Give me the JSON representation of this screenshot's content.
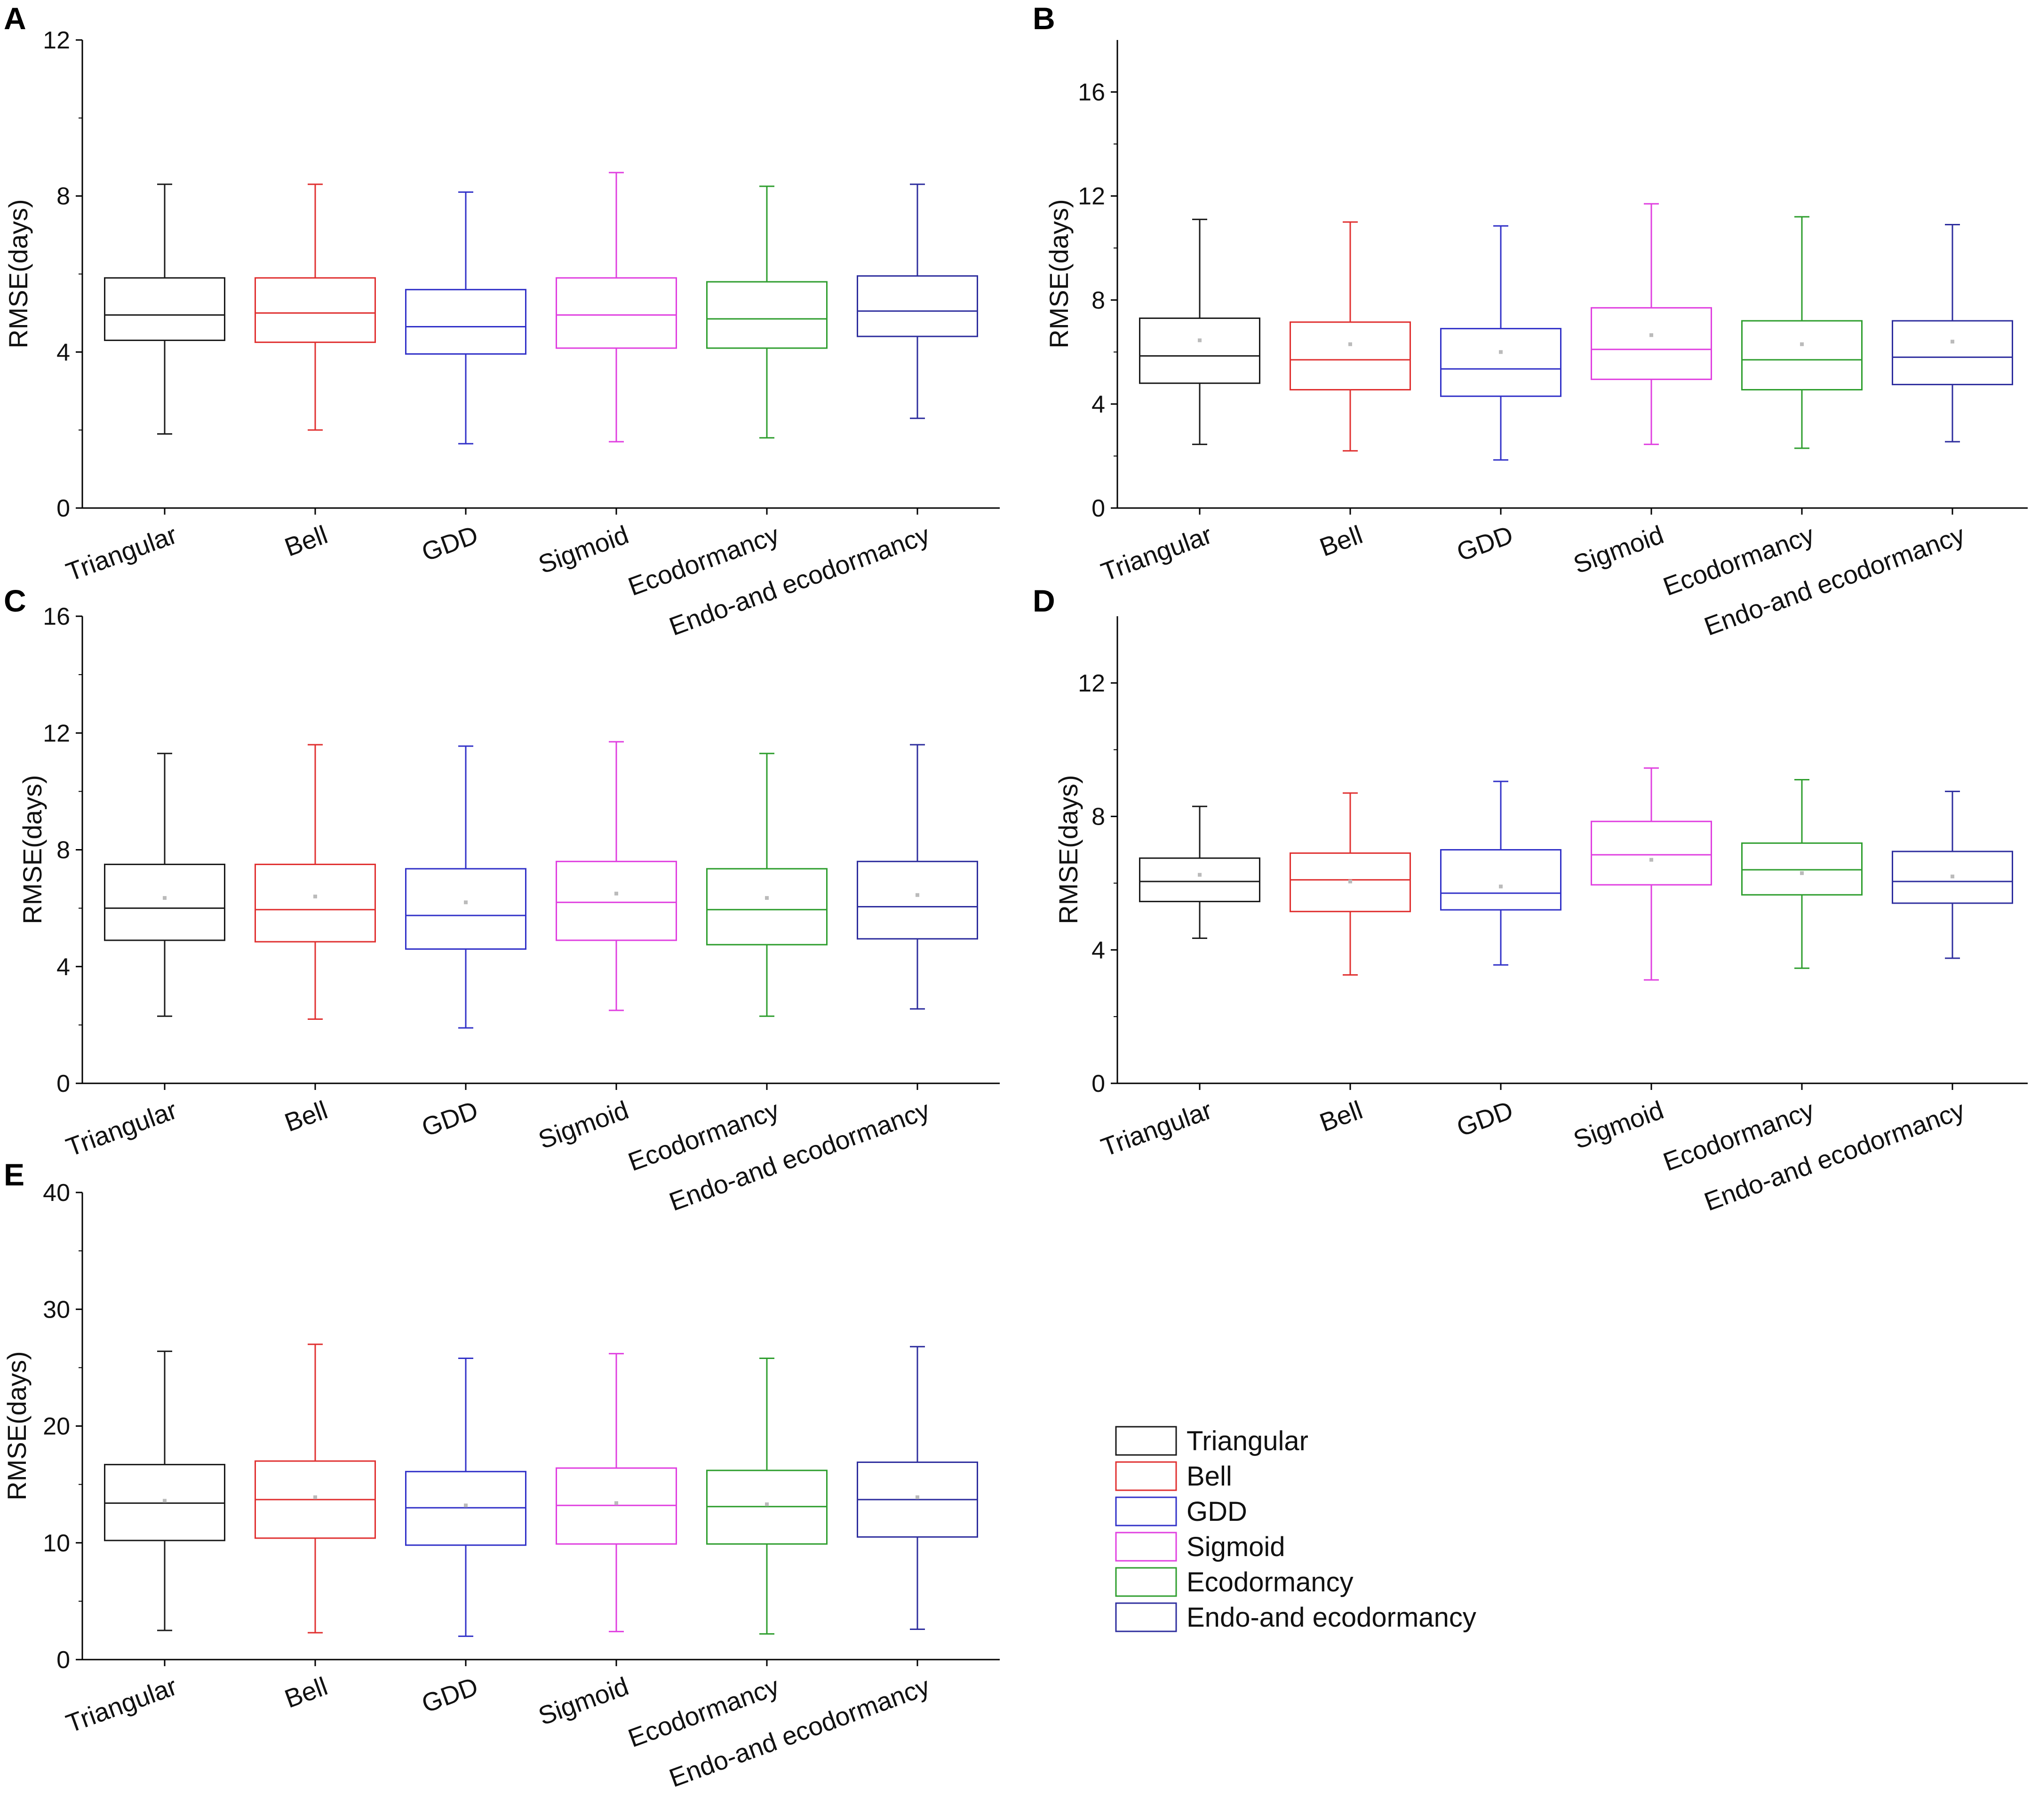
{
  "figure": {
    "categories": [
      "Triangular",
      "Bell",
      "GDD",
      "Sigmoid",
      "Ecodormancy",
      "Endo-and ecodormancy"
    ],
    "colors": {
      "Triangular": "#1a1a1a",
      "Bell": "#e03030",
      "GDD": "#3232c8",
      "Sigmoid": "#e040e0",
      "Ecodormancy": "#2e9e2e",
      "Endo-and ecodormancy": "#2e2e9e"
    },
    "legend": [
      "Triangular",
      "Bell",
      "GDD",
      "Sigmoid",
      "Ecodormancy",
      "Endo-and ecodormancy"
    ]
  },
  "chart_data": [
    {
      "type": "box",
      "panel": "A",
      "ylabel": "RMSE(days)",
      "ylim": [
        0,
        12
      ],
      "yticks": [
        0,
        4,
        8,
        12
      ],
      "categories": [
        "Triangular",
        "Bell",
        "GDD",
        "Sigmoid",
        "Ecodormancy",
        "Endo-and ecodormancy"
      ],
      "boxes": [
        {
          "min": 1.9,
          "q1": 4.3,
          "median": 4.95,
          "q3": 5.9,
          "max": 8.3
        },
        {
          "min": 2.0,
          "q1": 4.25,
          "median": 5.0,
          "q3": 5.9,
          "max": 8.3
        },
        {
          "min": 1.65,
          "q1": 3.95,
          "median": 4.65,
          "q3": 5.6,
          "max": 8.1
        },
        {
          "min": 1.7,
          "q1": 4.1,
          "median": 4.95,
          "q3": 5.9,
          "max": 8.6
        },
        {
          "min": 1.8,
          "q1": 4.1,
          "median": 4.85,
          "q3": 5.8,
          "max": 8.25
        },
        {
          "min": 2.3,
          "q1": 4.4,
          "median": 5.05,
          "q3": 5.95,
          "max": 8.3
        }
      ]
    },
    {
      "type": "box",
      "panel": "B",
      "ylabel": "RMSE(days)",
      "ylim": [
        0,
        18
      ],
      "yticks": [
        0,
        4,
        8,
        12,
        16
      ],
      "categories": [
        "Triangular",
        "Bell",
        "GDD",
        "Sigmoid",
        "Ecodormancy",
        "Endo-and ecodormancy"
      ],
      "boxes": [
        {
          "min": 2.45,
          "q1": 4.8,
          "median": 5.85,
          "q3": 7.3,
          "max": 11.1,
          "mean": 6.45
        },
        {
          "min": 2.2,
          "q1": 4.55,
          "median": 5.7,
          "q3": 7.15,
          "max": 11.0,
          "mean": 6.3
        },
        {
          "min": 1.85,
          "q1": 4.3,
          "median": 5.35,
          "q3": 6.9,
          "max": 10.85,
          "mean": 6.0
        },
        {
          "min": 2.45,
          "q1": 4.95,
          "median": 6.1,
          "q3": 7.7,
          "max": 11.7,
          "mean": 6.65
        },
        {
          "min": 2.3,
          "q1": 4.55,
          "median": 5.7,
          "q3": 7.2,
          "max": 11.2,
          "mean": 6.3
        },
        {
          "min": 2.55,
          "q1": 4.75,
          "median": 5.8,
          "q3": 7.2,
          "max": 10.9,
          "mean": 6.4
        }
      ]
    },
    {
      "type": "box",
      "panel": "C",
      "ylabel": "RMSE(days)",
      "ylim": [
        0,
        16
      ],
      "yticks": [
        0,
        4,
        8,
        12,
        16
      ],
      "categories": [
        "Triangular",
        "Bell",
        "GDD",
        "Sigmoid",
        "Ecodormancy",
        "Endo-and ecodormancy"
      ],
      "boxes": [
        {
          "min": 2.3,
          "q1": 4.9,
          "median": 6.0,
          "q3": 7.5,
          "max": 11.3,
          "mean": 6.35
        },
        {
          "min": 2.2,
          "q1": 4.85,
          "median": 5.95,
          "q3": 7.5,
          "max": 11.6,
          "mean": 6.4
        },
        {
          "min": 1.9,
          "q1": 4.6,
          "median": 5.75,
          "q3": 7.35,
          "max": 11.55,
          "mean": 6.2
        },
        {
          "min": 2.5,
          "q1": 4.9,
          "median": 6.2,
          "q3": 7.6,
          "max": 11.7,
          "mean": 6.5
        },
        {
          "min": 2.3,
          "q1": 4.75,
          "median": 5.95,
          "q3": 7.35,
          "max": 11.3,
          "mean": 6.35
        },
        {
          "min": 2.55,
          "q1": 4.95,
          "median": 6.05,
          "q3": 7.6,
          "max": 11.6,
          "mean": 6.45
        }
      ]
    },
    {
      "type": "box",
      "panel": "D",
      "ylabel": "RMSE(days)",
      "ylim": [
        0,
        14
      ],
      "yticks": [
        0,
        4,
        8,
        12
      ],
      "categories": [
        "Triangular",
        "Bell",
        "GDD",
        "Sigmoid",
        "Ecodormancy",
        "Endo-and ecodormancy"
      ],
      "boxes": [
        {
          "min": 4.35,
          "q1": 5.45,
          "median": 6.05,
          "q3": 6.75,
          "max": 8.3,
          "mean": 6.25
        },
        {
          "min": 3.25,
          "q1": 5.15,
          "median": 6.1,
          "q3": 6.9,
          "max": 8.7,
          "mean": 6.05
        },
        {
          "min": 3.55,
          "q1": 5.2,
          "median": 5.7,
          "q3": 7.0,
          "max": 9.05,
          "mean": 5.9
        },
        {
          "min": 3.1,
          "q1": 5.95,
          "median": 6.85,
          "q3": 7.85,
          "max": 9.45,
          "mean": 6.7
        },
        {
          "min": 3.45,
          "q1": 5.65,
          "median": 6.4,
          "q3": 7.2,
          "max": 9.1,
          "mean": 6.3
        },
        {
          "min": 3.75,
          "q1": 5.4,
          "median": 6.05,
          "q3": 6.95,
          "max": 8.75,
          "mean": 6.2
        }
      ]
    },
    {
      "type": "box",
      "panel": "E",
      "ylabel": "RMSE(days)",
      "ylim": [
        0,
        40
      ],
      "yticks": [
        0,
        10,
        20,
        30,
        40
      ],
      "categories": [
        "Triangular",
        "Bell",
        "GDD",
        "Sigmoid",
        "Ecodormancy",
        "Endo-and ecodormancy"
      ],
      "boxes": [
        {
          "min": 2.5,
          "q1": 10.2,
          "median": 13.4,
          "q3": 16.7,
          "max": 26.4,
          "mean": 13.6
        },
        {
          "min": 2.3,
          "q1": 10.4,
          "median": 13.7,
          "q3": 17.0,
          "max": 27.0,
          "mean": 13.9
        },
        {
          "min": 2.0,
          "q1": 9.8,
          "median": 13.0,
          "q3": 16.1,
          "max": 25.8,
          "mean": 13.2
        },
        {
          "min": 2.4,
          "q1": 9.9,
          "median": 13.2,
          "q3": 16.4,
          "max": 26.2,
          "mean": 13.4
        },
        {
          "min": 2.2,
          "q1": 9.9,
          "median": 13.1,
          "q3": 16.2,
          "max": 25.8,
          "mean": 13.3
        },
        {
          "min": 2.6,
          "q1": 10.5,
          "median": 13.7,
          "q3": 16.9,
          "max": 26.8,
          "mean": 13.9
        }
      ]
    }
  ]
}
